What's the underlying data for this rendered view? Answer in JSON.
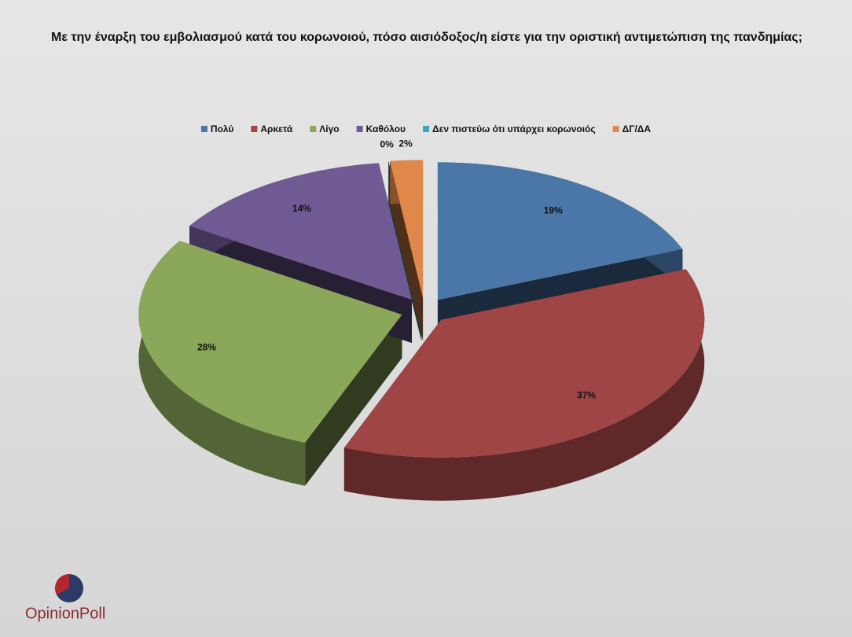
{
  "chart_data": {
    "type": "pie3d",
    "title": "Με την έναρξη του εμβολιασμού κατά του κορωνοιού, πόσο αισιόδοξος/η είστε για την οριστική αντιμετώπιση της πανδημίας;",
    "categories": [
      "Πολύ",
      "Αρκετά",
      "Λίγο",
      "Καθόλου",
      "Δεν πιστεύω ότι υπάρχει κορωνοιός",
      "ΔΓ/ΔΑ"
    ],
    "values": [
      19,
      37,
      28,
      14,
      0,
      2
    ],
    "value_labels": [
      "19%",
      "37%",
      "28%",
      "14%",
      "0%",
      "2%"
    ],
    "colors": [
      "#4a76a8",
      "#a04545",
      "#8ba85a",
      "#6f5a93",
      "#3fa6bf",
      "#e0884a"
    ],
    "legend": "top"
  },
  "logo": "OpinionPoll"
}
